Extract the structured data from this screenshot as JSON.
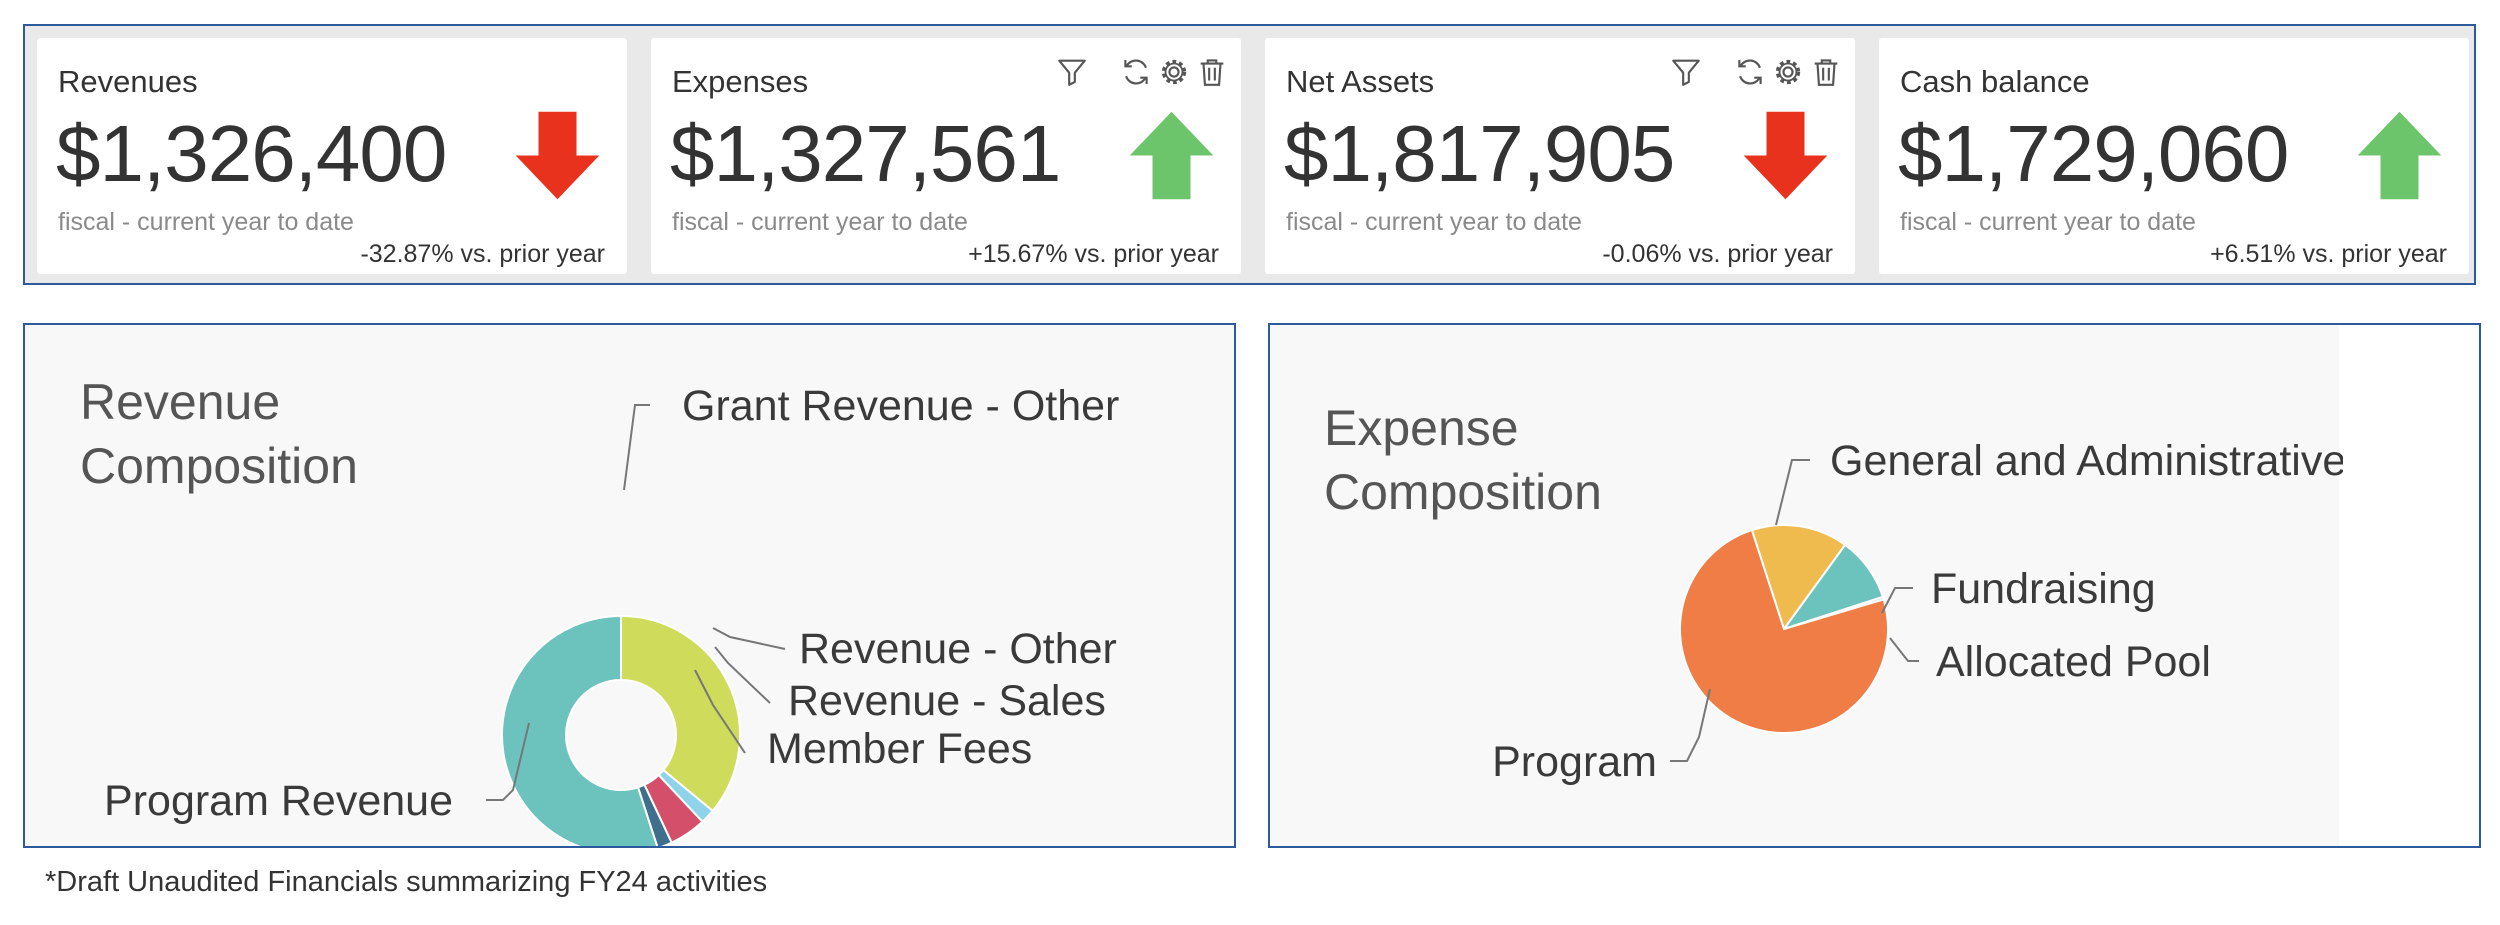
{
  "kpis": [
    {
      "title": "Revenues",
      "value": "$1,326,400",
      "subtitle": "fiscal - current year to date",
      "change": "-32.87% vs. prior year",
      "trend": "down",
      "trend_color": "#e8321e",
      "has_tools": false
    },
    {
      "title": "Expenses",
      "value": "$1,327,561",
      "subtitle": "fiscal - current year to date",
      "change": "+15.67% vs. prior year",
      "trend": "up",
      "trend_color": "#6cc56b",
      "has_tools": true
    },
    {
      "title": "Net Assets",
      "value": "$1,817,905",
      "subtitle": "fiscal - current year to date",
      "change": "-0.06% vs. prior year",
      "trend": "down",
      "trend_color": "#e8321e",
      "has_tools": true
    },
    {
      "title": "Cash balance",
      "value": "$1,729,060",
      "subtitle": "fiscal - current year to date",
      "change": "+6.51% vs. prior year",
      "trend": "up",
      "trend_color": "#6cc56b",
      "has_tools": false
    }
  ],
  "tool_icons": [
    "filter-icon",
    "refresh-icon",
    "gear-icon",
    "trash-icon"
  ],
  "revenue_panel": {
    "title_line1": "Revenue",
    "title_line2": "Composition",
    "chart_data": {
      "type": "pie",
      "donut": true,
      "slices": [
        {
          "label": "Grant Revenue - Other",
          "value": 36,
          "color": "#cedb5b"
        },
        {
          "label": "Revenue - Other",
          "value": 2,
          "color": "#8fd3ea"
        },
        {
          "label": "Revenue - Sales",
          "value": 5,
          "color": "#d4506a"
        },
        {
          "label": "Member Fees",
          "value": 2,
          "color": "#3f6f8c"
        },
        {
          "label": "Program Revenue",
          "value": 55,
          "color": "#6cc2bc"
        }
      ]
    }
  },
  "expense_panel": {
    "title_line1": "Expense",
    "title_line2": "Composition",
    "chart_data": {
      "type": "pie",
      "donut": false,
      "slices": [
        {
          "label": "General and Administrative",
          "value": 15,
          "color": "#f0bb4e"
        },
        {
          "label": "Fundraising",
          "value": 10,
          "color": "#6cc2bc"
        },
        {
          "label": "Allocated Pool",
          "value": 0.4,
          "color": "#9acfd0"
        },
        {
          "label": "Program",
          "value": 74.6,
          "color": "#ef7d45"
        }
      ]
    }
  },
  "footnote": "*Draft Unaudited Financials summarizing FY24 activities"
}
